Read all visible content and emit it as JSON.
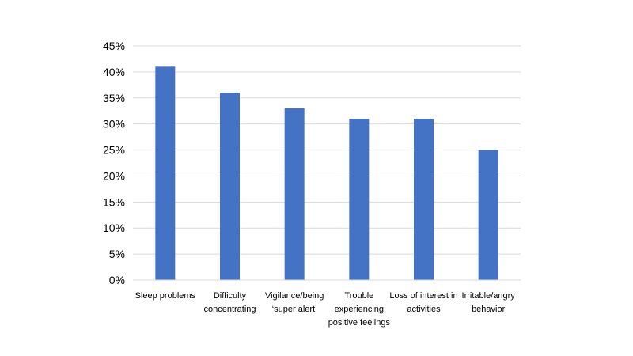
{
  "chart_data": {
    "type": "bar",
    "title": "",
    "xlabel": "",
    "ylabel": "",
    "categories": [
      "Sleep problems",
      "Difficulty concentrating",
      "Vigilance/being ‘super alert’",
      "Trouble experiencing positive feelings",
      "Loss of interest in activities",
      "Irritable/angry behavior"
    ],
    "category_label_lines": [
      [
        "Sleep problems"
      ],
      [
        "Difficulty",
        "concentrating"
      ],
      [
        "Vigilance/being",
        "‘super alert’"
      ],
      [
        "Trouble",
        "experiencing",
        "positive feelings"
      ],
      [
        "Loss of interest in",
        "activities"
      ],
      [
        "Irritable/angry",
        "behavior"
      ]
    ],
    "values": [
      41,
      36,
      33,
      31,
      31,
      25
    ],
    "ylim": [
      0,
      45
    ],
    "y_ticks": [
      0,
      5,
      10,
      15,
      20,
      25,
      30,
      35,
      40,
      45
    ],
    "y_tick_labels": [
      "0%",
      "5%",
      "10%",
      "15%",
      "20%",
      "25%",
      "30%",
      "35%",
      "40%",
      "45%"
    ],
    "grid": true,
    "legend": "none",
    "bar_color": "#4472C4",
    "grid_color": "#D9D9D9",
    "axis_color": "#D9D9D9"
  }
}
